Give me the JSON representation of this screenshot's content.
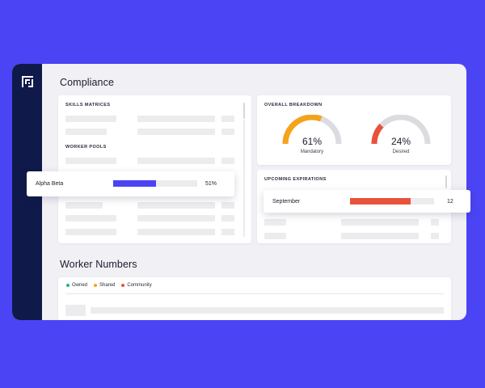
{
  "compliance": {
    "title": "Compliance",
    "skills": {
      "caption": "SKILLS MATRICES",
      "worker_pools_caption": "WORKER POOLS",
      "highlight_row": {
        "label": "Alpha Beta",
        "value": "51%",
        "progress": 0.51,
        "color": "#4b44f5"
      }
    },
    "overall": {
      "caption": "OVERALL BREAKDOWN",
      "gauges": [
        {
          "pct": "61%",
          "label": "Mandatory",
          "fraction": 0.61,
          "color": "#f5a31a"
        },
        {
          "pct": "24%",
          "label": "Desired",
          "fraction": 0.24,
          "color": "#e8523c"
        }
      ]
    },
    "expirations": {
      "caption": "UPCOMING EXPIRATIONS",
      "highlight_row": {
        "label": "September",
        "value": "12",
        "progress": 0.72,
        "color": "#e8523c"
      }
    }
  },
  "worker_numbers": {
    "title": "Worker Numbers",
    "legend": [
      {
        "label": "Owned",
        "color": "#1fb87a"
      },
      {
        "label": "Shared",
        "color": "#f5a31a"
      },
      {
        "label": "Community",
        "color": "#e8523c"
      }
    ]
  }
}
